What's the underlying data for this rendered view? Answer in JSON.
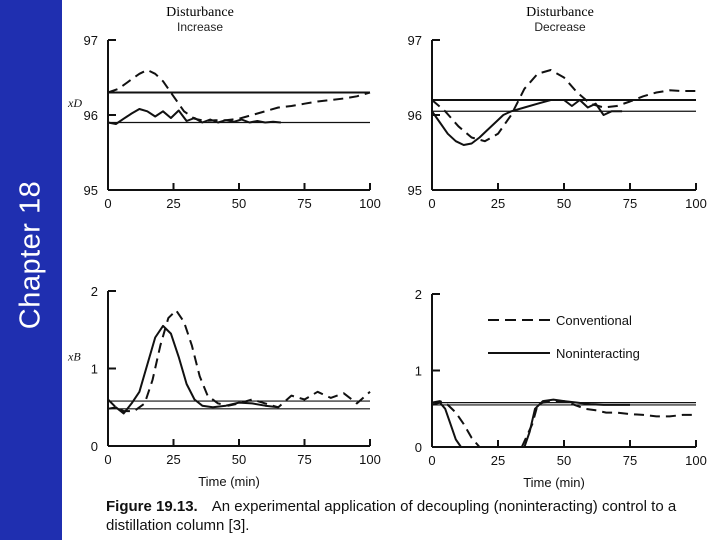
{
  "sidebar": {
    "label": "Chapter 18",
    "color": "#1f2fb0"
  },
  "caption": {
    "number": "Figure 19.13.",
    "text": "An experimental application of decoupling (noninteracting) control to a distillation column [3]."
  },
  "legend": {
    "conventional": "Conventional",
    "noninteracting": "Noninteracting"
  },
  "chart_data": [
    {
      "id": "xd-increase",
      "type": "line",
      "title": "Disturbance",
      "subtitle": "Increase",
      "xlabel": "",
      "ylabel": "xD",
      "xlim": [
        0,
        100
      ],
      "ylim": [
        95,
        97
      ],
      "xticks": [
        "0",
        "25",
        "50",
        "75",
        "100"
      ],
      "yticks": [
        "97",
        "96",
        "95"
      ],
      "setpoint_lines": [
        96.3,
        95.9
      ],
      "series": [
        {
          "name": "Conventional",
          "style": "dashed",
          "x": [
            0,
            4,
            8,
            12,
            15,
            18,
            21,
            25,
            29,
            33,
            37,
            41,
            45,
            50,
            55,
            60,
            65,
            70,
            75,
            80,
            85,
            90,
            95,
            100
          ],
          "y": [
            96.3,
            96.35,
            96.45,
            96.55,
            96.6,
            96.55,
            96.45,
            96.25,
            96.05,
            95.95,
            95.92,
            95.93,
            95.93,
            95.95,
            96.0,
            96.05,
            96.1,
            96.12,
            96.15,
            96.18,
            96.2,
            96.22,
            96.25,
            96.3
          ]
        },
        {
          "name": "Noninteracting",
          "style": "solid",
          "x": [
            0,
            3,
            6,
            9,
            12,
            15,
            18,
            21,
            24,
            27,
            30,
            33,
            36,
            39,
            42,
            45,
            48,
            51,
            54,
            57,
            60,
            63,
            66
          ],
          "y": [
            95.9,
            95.88,
            95.95,
            96.02,
            96.08,
            96.05,
            95.98,
            96.05,
            95.96,
            96.06,
            95.92,
            95.96,
            95.9,
            95.94,
            95.9,
            95.93,
            95.91,
            95.94,
            95.9,
            95.92,
            95.9,
            95.91,
            95.9
          ]
        }
      ]
    },
    {
      "id": "xd-decrease",
      "type": "line",
      "title": "Disturbance",
      "subtitle": "Decrease",
      "xlabel": "",
      "ylabel": "",
      "xlim": [
        0,
        100
      ],
      "ylim": [
        95,
        97
      ],
      "xticks": [
        "0",
        "25",
        "50",
        "75",
        "100"
      ],
      "yticks": [
        "97",
        "96",
        "95"
      ],
      "setpoint_lines": [
        96.2,
        96.05
      ],
      "series": [
        {
          "name": "Conventional",
          "style": "dashed",
          "x": [
            0,
            5,
            10,
            15,
            20,
            25,
            30,
            35,
            40,
            45,
            50,
            55,
            60,
            65,
            70,
            75,
            80,
            85,
            90,
            95,
            100
          ],
          "y": [
            96.2,
            96.05,
            95.85,
            95.7,
            95.65,
            95.75,
            96.0,
            96.35,
            96.55,
            96.6,
            96.5,
            96.3,
            96.15,
            96.1,
            96.12,
            96.18,
            96.25,
            96.3,
            96.33,
            96.32,
            96.32
          ]
        },
        {
          "name": "Noninteracting",
          "style": "solid",
          "x": [
            0,
            3,
            6,
            9,
            12,
            15,
            18,
            21,
            24,
            27,
            30,
            35,
            40,
            45,
            50,
            53,
            56,
            59,
            62,
            65,
            68,
            72
          ],
          "y": [
            96.05,
            95.9,
            95.75,
            95.65,
            95.6,
            95.62,
            95.7,
            95.8,
            95.9,
            96.0,
            96.05,
            96.1,
            96.15,
            96.2,
            96.2,
            96.12,
            96.2,
            96.1,
            96.15,
            96.0,
            96.05,
            96.05
          ]
        }
      ]
    },
    {
      "id": "xb-increase",
      "type": "line",
      "title": "",
      "subtitle": "",
      "xlabel": "Time (min)",
      "ylabel": "xB",
      "xlim": [
        0,
        100
      ],
      "ylim": [
        0,
        2
      ],
      "xticks": [
        "0",
        "25",
        "50",
        "75",
        "100"
      ],
      "yticks": [
        "2",
        "1",
        "0"
      ],
      "setpoint_lines": [
        0.58,
        0.48
      ],
      "series": [
        {
          "name": "Conventional",
          "style": "dashed",
          "x": [
            0,
            3,
            6,
            10,
            14,
            17,
            20,
            23,
            26,
            29,
            32,
            35,
            38,
            42,
            46,
            50,
            55,
            60,
            65,
            70,
            75,
            80,
            85,
            90,
            95,
            100
          ],
          "y": [
            0.6,
            0.5,
            0.45,
            0.45,
            0.55,
            0.85,
            1.3,
            1.65,
            1.75,
            1.6,
            1.3,
            0.9,
            0.65,
            0.55,
            0.52,
            0.55,
            0.6,
            0.55,
            0.5,
            0.65,
            0.6,
            0.7,
            0.62,
            0.68,
            0.55,
            0.7
          ]
        },
        {
          "name": "Noninteracting",
          "style": "solid",
          "x": [
            0,
            3,
            6,
            9,
            12,
            15,
            18,
            21,
            24,
            27,
            30,
            33,
            36,
            40,
            45,
            50,
            55,
            60,
            65
          ],
          "y": [
            0.48,
            0.5,
            0.42,
            0.55,
            0.7,
            1.05,
            1.4,
            1.55,
            1.45,
            1.15,
            0.8,
            0.6,
            0.52,
            0.5,
            0.52,
            0.56,
            0.55,
            0.52,
            0.5
          ]
        }
      ]
    },
    {
      "id": "xb-decrease",
      "type": "line",
      "title": "",
      "subtitle": "",
      "xlabel": "Time (min)",
      "ylabel": "",
      "xlim": [
        0,
        100
      ],
      "ylim": [
        0,
        2
      ],
      "xticks": [
        "0",
        "25",
        "50",
        "75",
        "100"
      ],
      "yticks": [
        "2",
        "1",
        "0"
      ],
      "setpoint_lines": [
        0.58,
        0.55
      ],
      "series": [
        {
          "name": "Conventional",
          "style": "dashed",
          "x": [
            0,
            3,
            6,
            9,
            12,
            15,
            18,
            21,
            23,
            26,
            30,
            34,
            38,
            40,
            42,
            46,
            50,
            54,
            58,
            62,
            66,
            70,
            75,
            80,
            85,
            90,
            95,
            100
          ],
          "y": [
            0.58,
            0.6,
            0.55,
            0.45,
            0.3,
            0.12,
            0.0,
            0.0,
            0.0,
            0.0,
            0.0,
            0.0,
            0.3,
            0.55,
            0.58,
            0.6,
            0.6,
            0.55,
            0.5,
            0.48,
            0.45,
            0.45,
            0.43,
            0.42,
            0.4,
            0.4,
            0.42,
            0.42
          ]
        },
        {
          "name": "Noninteracting",
          "style": "solid",
          "x": [
            0,
            3,
            5,
            7,
            9,
            11,
            14,
            20,
            25,
            30,
            35,
            37,
            39,
            42,
            46,
            50,
            55,
            60,
            65,
            70,
            75
          ],
          "y": [
            0.55,
            0.58,
            0.5,
            0.3,
            0.1,
            0.0,
            0.0,
            0.0,
            0.0,
            0.0,
            0.0,
            0.2,
            0.5,
            0.6,
            0.62,
            0.6,
            0.58,
            0.56,
            0.55,
            0.55,
            0.55
          ]
        }
      ]
    }
  ]
}
